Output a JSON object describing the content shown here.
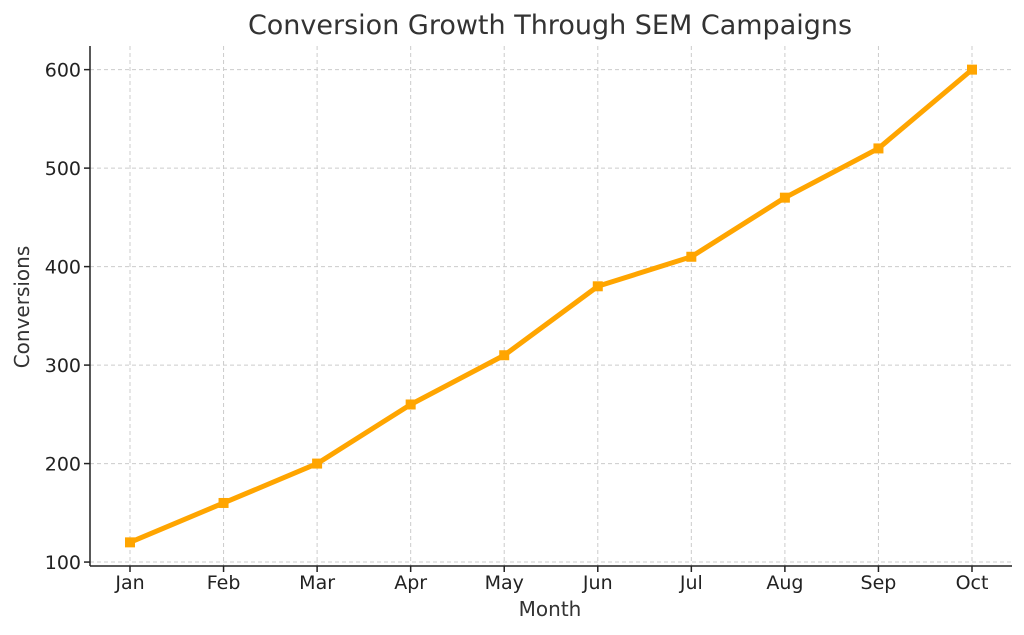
{
  "chart_data": {
    "type": "line",
    "title": "Conversion Growth Through SEM Campaigns",
    "xlabel": "Month",
    "ylabel": "Conversions",
    "categories": [
      "Jan",
      "Feb",
      "Mar",
      "Apr",
      "May",
      "Jun",
      "Jul",
      "Aug",
      "Sep",
      "Oct"
    ],
    "series": [
      {
        "values": [
          120,
          160,
          200,
          260,
          310,
          380,
          410,
          470,
          520,
          600
        ],
        "color": "#FFA500",
        "marker": "square"
      }
    ],
    "ylim": [
      96,
      624
    ],
    "yticks": [
      100,
      200,
      300,
      400,
      500,
      600
    ],
    "grid": true,
    "legend": "none"
  }
}
